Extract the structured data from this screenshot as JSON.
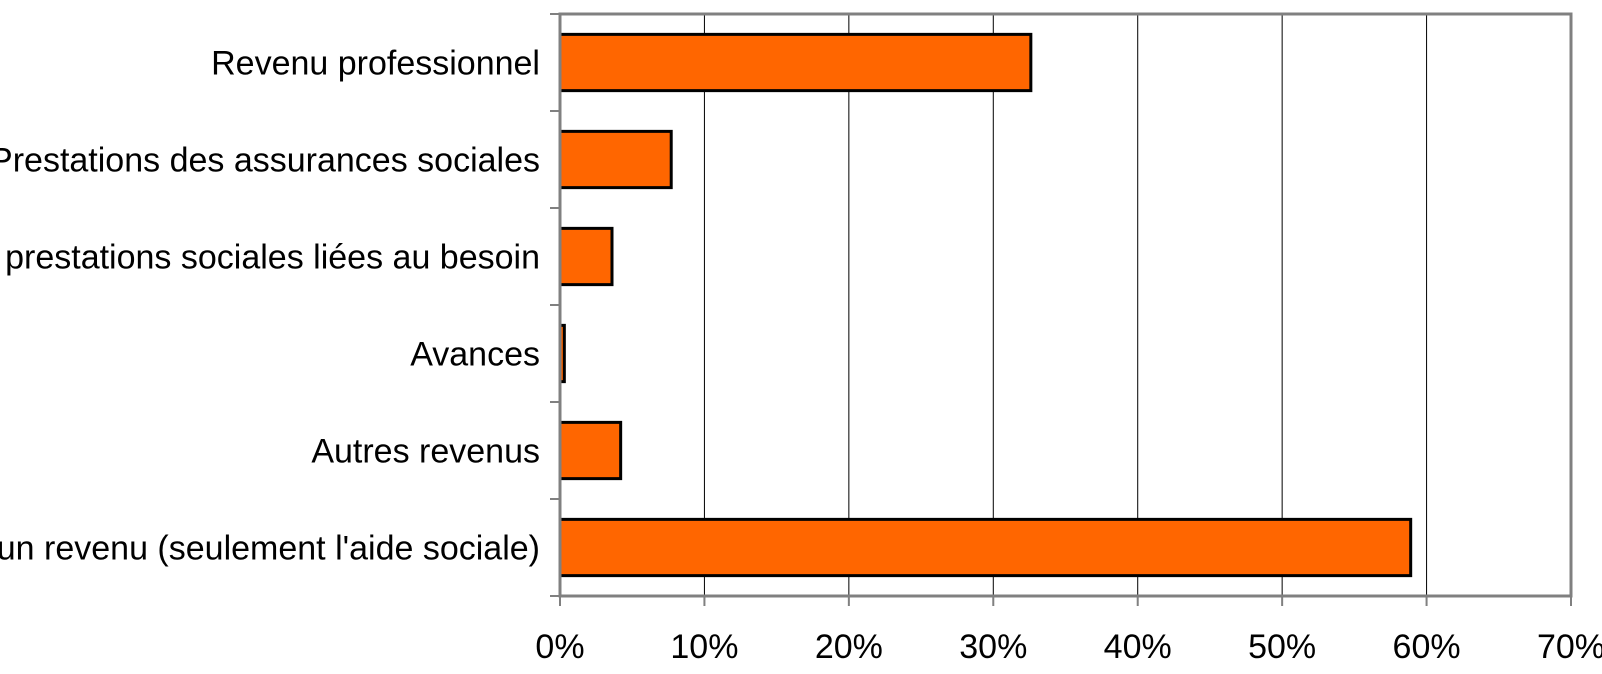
{
  "chart_data": {
    "type": "bar",
    "orientation": "horizontal",
    "categories": [
      "Revenu professionnel",
      "Prestations des assurances sociales",
      "Autres prestations sociales liées au besoin",
      "Avances",
      "Autres revenus",
      "Aucun revenu (seulement l'aide sociale)"
    ],
    "values": [
      32.6,
      7.7,
      3.6,
      0.3,
      4.2,
      58.9
    ],
    "xlim": [
      0,
      70
    ],
    "xticks": [
      0,
      10,
      20,
      30,
      40,
      50,
      60,
      70
    ],
    "xtick_labels": [
      "0%",
      "10%",
      "20%",
      "30%",
      "40%",
      "50%",
      "60%",
      "70%"
    ],
    "grid": "vertical",
    "bar_color": "#ff6600",
    "bar_edge_color": "#000000"
  }
}
